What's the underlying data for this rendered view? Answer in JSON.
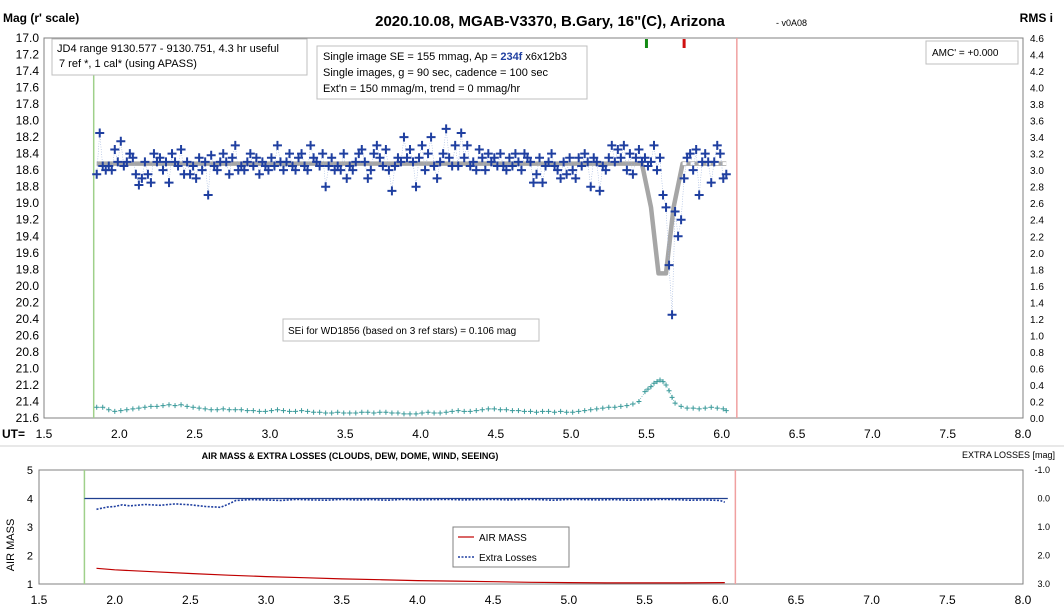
{
  "header": {
    "title": "2020.10.08, MGAB-V3370, B.Gary, 16\"(C), Arizona",
    "version": "- v0A08",
    "left_axis_label": "Mag (r' scale)",
    "right_axis_label": "RMS i",
    "ut_label": "UT="
  },
  "info_boxes": {
    "jd": [
      "JD4 range 9130.577 - 9130.751, 4.3 hr useful",
      "7 ref *, 1 cal* (using APASS)"
    ],
    "se_prefix": "Single image SE = 155 mmag, Ap = ",
    "se_ap": "234f",
    "se_suffix": " x6x12b3",
    "line2": "Single images, g = 90 sec, cadence = 100 sec",
    "line3": "Ext'n = 150 mmag/m, trend = 0 mmag/hr",
    "amc": "AMC' = +0.000",
    "sei": "SEi for WD1856 (based on 3 ref stars) = 0.106 mag"
  },
  "bottom_panel": {
    "title": "AIR MASS & EXTRA LOSSES (CLOUDS, DEW, DOME, WIND, SEEING)",
    "right_label": "EXTRA LOSSES [mag]",
    "left_label": "AIR MASS",
    "legend": [
      "AIR MASS",
      "Extra Losses"
    ]
  },
  "colors": {
    "data_marker": "#1f3fa0",
    "model": "#a6a6a6",
    "rms": "#3a9a9a",
    "airmass": "#c00000",
    "extra": "#1f3fa0",
    "start_line": "#9fd08a",
    "end_line": "#f0a0a0",
    "tick_green": "#138a13",
    "tick_red": "#d01010"
  },
  "chart_data": [
    {
      "type": "scatter",
      "panel": "top",
      "xlabel": "UT",
      "ylabel": "Mag (r' scale)",
      "xlim": [
        1.5,
        8.0
      ],
      "x_ticks": [
        "1.5",
        "2.0",
        "2.5",
        "3.0",
        "3.5",
        "4.0",
        "4.5",
        "5.0",
        "5.5",
        "6.0",
        "6.5",
        "7.0",
        "7.5",
        "8.0"
      ],
      "ylim": [
        17.0,
        21.6
      ],
      "y_inverted": true,
      "y_ticks": [
        "17.0",
        "17.2",
        "17.4",
        "17.6",
        "17.8",
        "18.0",
        "18.2",
        "18.4",
        "18.6",
        "18.8",
        "19.0",
        "19.2",
        "19.4",
        "19.6",
        "19.8",
        "20.0",
        "20.2",
        "20.4",
        "20.6",
        "20.8",
        "21.0",
        "21.2",
        "21.4",
        "21.6"
      ],
      "y2label": "RMS i",
      "y2lim": [
        0.0,
        4.6
      ],
      "y2_ticks": [
        "4.6",
        "4.4",
        "4.2",
        "4.0",
        "3.8",
        "3.6",
        "3.4",
        "3.2",
        "3.0",
        "2.8",
        "2.6",
        "2.4",
        "2.2",
        "2.0",
        "1.8",
        "1.6",
        "1.4",
        "1.2",
        "1.0",
        "0.8",
        "0.6",
        "0.4",
        "0.2",
        "0.0"
      ],
      "observation_start": 1.83,
      "observation_end": 6.1,
      "ingress_tick": 5.5,
      "egress_tick": 5.75,
      "model_baseline": 18.52,
      "model_depth": 19.85,
      "series": [
        {
          "kind": "magnitude",
          "x": [
            1.85,
            1.87,
            1.89,
            1.91,
            1.93,
            1.95,
            1.97,
            1.99,
            2.01,
            2.03,
            2.05,
            2.07,
            2.09,
            2.11,
            2.13,
            2.15,
            2.17,
            2.19,
            2.21,
            2.23,
            2.25,
            2.27,
            2.29,
            2.31,
            2.33,
            2.35,
            2.37,
            2.39,
            2.41,
            2.43,
            2.45,
            2.47,
            2.49,
            2.51,
            2.53,
            2.55,
            2.57,
            2.59,
            2.61,
            2.63,
            2.65,
            2.67,
            2.69,
            2.71,
            2.73,
            2.75,
            2.77,
            2.79,
            2.81,
            2.83,
            2.85,
            2.87,
            2.89,
            2.91,
            2.93,
            2.95,
            2.97,
            2.99,
            3.01,
            3.03,
            3.05,
            3.07,
            3.09,
            3.11,
            3.13,
            3.15,
            3.17,
            3.19,
            3.21,
            3.23,
            3.25,
            3.27,
            3.29,
            3.31,
            3.33,
            3.35,
            3.37,
            3.39,
            3.41,
            3.43,
            3.45,
            3.47,
            3.49,
            3.51,
            3.53,
            3.55,
            3.57,
            3.59,
            3.61,
            3.63,
            3.65,
            3.67,
            3.69,
            3.71,
            3.73,
            3.75,
            3.77,
            3.79,
            3.81,
            3.83,
            3.85,
            3.87,
            3.89,
            3.91,
            3.93,
            3.95,
            3.97,
            3.99,
            4.01,
            4.03,
            4.05,
            4.07,
            4.09,
            4.11,
            4.13,
            4.15,
            4.17,
            4.19,
            4.21,
            4.23,
            4.25,
            4.27,
            4.29,
            4.31,
            4.33,
            4.35,
            4.37,
            4.39,
            4.41,
            4.43,
            4.45,
            4.47,
            4.49,
            4.51,
            4.53,
            4.55,
            4.57,
            4.59,
            4.61,
            4.63,
            4.65,
            4.67,
            4.69,
            4.71,
            4.73,
            4.75,
            4.77,
            4.79,
            4.81,
            4.83,
            4.85,
            4.87,
            4.89,
            4.91,
            4.93,
            4.95,
            4.97,
            4.99,
            5.01,
            5.03,
            5.05,
            5.07,
            5.09,
            5.11,
            5.13,
            5.15,
            5.17,
            5.19,
            5.21,
            5.23,
            5.25,
            5.27,
            5.29,
            5.31,
            5.33,
            5.35,
            5.37,
            5.39,
            5.41,
            5.43,
            5.45,
            5.47,
            5.49,
            5.51,
            5.53,
            5.55,
            5.57,
            5.59,
            5.61,
            5.63,
            5.65,
            5.67,
            5.69,
            5.71,
            5.73,
            5.75,
            5.77,
            5.79,
            5.81,
            5.83,
            5.85,
            5.87,
            5.89,
            5.91,
            5.93,
            5.95,
            5.97,
            5.99,
            6.01,
            6.03
          ],
          "y": [
            18.65,
            18.15,
            18.55,
            18.6,
            18.55,
            18.6,
            18.35,
            18.5,
            18.25,
            18.55,
            18.5,
            18.4,
            18.45,
            18.65,
            18.78,
            18.7,
            18.5,
            18.65,
            18.75,
            18.4,
            18.5,
            18.45,
            18.6,
            18.5,
            18.75,
            18.4,
            18.5,
            18.55,
            18.35,
            18.65,
            18.5,
            18.65,
            18.55,
            18.7,
            18.45,
            18.6,
            18.5,
            18.9,
            18.42,
            18.55,
            18.6,
            18.5,
            18.4,
            18.5,
            18.65,
            18.45,
            18.3,
            18.6,
            18.55,
            18.6,
            18.5,
            18.4,
            18.55,
            18.45,
            18.65,
            18.5,
            18.55,
            18.6,
            18.45,
            18.55,
            18.3,
            18.5,
            18.6,
            18.5,
            18.4,
            18.55,
            18.6,
            18.45,
            18.4,
            18.55,
            18.6,
            18.3,
            18.45,
            18.5,
            18.55,
            18.4,
            18.8,
            18.55,
            18.45,
            18.6,
            18.55,
            18.6,
            18.4,
            18.7,
            18.55,
            18.6,
            18.5,
            18.4,
            18.35,
            18.5,
            18.7,
            18.6,
            18.4,
            18.3,
            18.45,
            18.55,
            18.35,
            18.6,
            18.85,
            18.55,
            18.45,
            18.5,
            18.2,
            18.45,
            18.35,
            18.5,
            18.8,
            18.45,
            18.3,
            18.6,
            18.4,
            18.2,
            18.55,
            18.7,
            18.5,
            18.4,
            18.1,
            18.45,
            18.55,
            18.3,
            18.55,
            18.15,
            18.45,
            18.3,
            18.55,
            18.5,
            18.6,
            18.35,
            18.45,
            18.6,
            18.4,
            18.5,
            18.45,
            18.55,
            18.4,
            18.55,
            18.6,
            18.45,
            18.55,
            18.4,
            18.5,
            18.6,
            18.4,
            18.45,
            18.5,
            18.75,
            18.65,
            18.45,
            18.75,
            18.55,
            18.5,
            18.4,
            18.55,
            18.6,
            18.7,
            18.5,
            18.65,
            18.45,
            18.6,
            18.7,
            18.45,
            18.55,
            18.4,
            18.5,
            18.8,
            18.45,
            18.5,
            18.85,
            18.55,
            18.6,
            18.45,
            18.3,
            18.5,
            18.35,
            18.45,
            18.3,
            18.6,
            18.4,
            18.65,
            18.45,
            18.35,
            18.5,
            18.45,
            18.55,
            18.5,
            18.3,
            18.6,
            18.45,
            18.9,
            19.05,
            19.75,
            20.35,
            19.1,
            19.4,
            19.2,
            18.7,
            18.45,
            18.4,
            18.6,
            18.35,
            18.9,
            18.5,
            18.4,
            18.5,
            18.75,
            18.5,
            18.3,
            18.4,
            18.7,
            18.65
          ]
        },
        {
          "kind": "rms",
          "x": [
            1.85,
            1.89,
            1.93,
            1.97,
            2.01,
            2.05,
            2.09,
            2.13,
            2.17,
            2.21,
            2.25,
            2.29,
            2.33,
            2.37,
            2.41,
            2.45,
            2.49,
            2.53,
            2.57,
            2.61,
            2.65,
            2.69,
            2.73,
            2.77,
            2.81,
            2.85,
            2.89,
            2.93,
            2.97,
            3.01,
            3.05,
            3.09,
            3.13,
            3.17,
            3.21,
            3.25,
            3.29,
            3.33,
            3.37,
            3.41,
            3.45,
            3.49,
            3.53,
            3.57,
            3.61,
            3.65,
            3.69,
            3.73,
            3.77,
            3.81,
            3.85,
            3.89,
            3.93,
            3.97,
            4.01,
            4.05,
            4.09,
            4.13,
            4.17,
            4.21,
            4.25,
            4.29,
            4.33,
            4.37,
            4.41,
            4.45,
            4.49,
            4.53,
            4.57,
            4.61,
            4.65,
            4.69,
            4.73,
            4.77,
            4.81,
            4.85,
            4.89,
            4.93,
            4.97,
            5.01,
            5.05,
            5.09,
            5.13,
            5.17,
            5.21,
            5.25,
            5.29,
            5.33,
            5.37,
            5.41,
            5.45,
            5.49,
            5.51,
            5.53,
            5.55,
            5.57,
            5.59,
            5.61,
            5.63,
            5.65,
            5.67,
            5.69,
            5.73,
            5.77,
            5.81,
            5.85,
            5.89,
            5.93,
            5.97,
            6.01,
            6.03
          ],
          "y": [
            0.13,
            0.13,
            0.1,
            0.08,
            0.09,
            0.1,
            0.11,
            0.12,
            0.13,
            0.14,
            0.14,
            0.15,
            0.16,
            0.15,
            0.16,
            0.14,
            0.13,
            0.12,
            0.11,
            0.1,
            0.1,
            0.11,
            0.1,
            0.1,
            0.1,
            0.09,
            0.09,
            0.08,
            0.08,
            0.09,
            0.1,
            0.09,
            0.08,
            0.08,
            0.09,
            0.08,
            0.07,
            0.07,
            0.06,
            0.06,
            0.07,
            0.06,
            0.06,
            0.06,
            0.07,
            0.07,
            0.06,
            0.07,
            0.07,
            0.06,
            0.06,
            0.05,
            0.05,
            0.05,
            0.06,
            0.07,
            0.06,
            0.06,
            0.07,
            0.08,
            0.09,
            0.08,
            0.08,
            0.09,
            0.1,
            0.11,
            0.11,
            0.1,
            0.1,
            0.09,
            0.09,
            0.08,
            0.08,
            0.07,
            0.08,
            0.08,
            0.07,
            0.08,
            0.07,
            0.07,
            0.08,
            0.09,
            0.1,
            0.11,
            0.12,
            0.13,
            0.13,
            0.14,
            0.15,
            0.17,
            0.2,
            0.32,
            0.35,
            0.38,
            0.42,
            0.44,
            0.46,
            0.44,
            0.4,
            0.33,
            0.25,
            0.18,
            0.14,
            0.12,
            0.12,
            0.11,
            0.12,
            0.13,
            0.12,
            0.11,
            0.09
          ]
        }
      ]
    },
    {
      "type": "line",
      "panel": "bottom",
      "title": "AIR MASS & EXTRA LOSSES (CLOUDS, DEW, DOME, WIND, SEEING)",
      "xlim": [
        1.5,
        8.0
      ],
      "x_ticks": [
        "1.5",
        "2.0",
        "2.5",
        "3.0",
        "3.5",
        "4.0",
        "4.5",
        "5.0",
        "5.5",
        "6.0",
        "6.5",
        "7.0",
        "7.5",
        "8.0"
      ],
      "ylabel": "AIR MASS",
      "ylim": [
        1,
        5
      ],
      "y_ticks": [
        "1",
        "2",
        "3",
        "4",
        "5"
      ],
      "y2label": "EXTRA LOSSES [mag]",
      "y2lim": [
        -1.0,
        3.0
      ],
      "y2_inverted": true,
      "y2_ticks": [
        "-1.0",
        "0.0",
        "1.0",
        "2.0",
        "3.0"
      ],
      "reference_level": 4.0,
      "observation_start": 1.8,
      "observation_end": 6.1,
      "legend": [
        "AIR MASS",
        "Extra Losses"
      ],
      "series": [
        {
          "name": "AIR MASS",
          "x": [
            1.88,
            2.0,
            2.25,
            2.5,
            2.75,
            3.0,
            3.25,
            3.5,
            3.75,
            4.0,
            4.25,
            4.5,
            4.75,
            5.0,
            5.25,
            5.5,
            5.75,
            6.03
          ],
          "y": [
            1.55,
            1.5,
            1.43,
            1.37,
            1.31,
            1.26,
            1.22,
            1.18,
            1.15,
            1.12,
            1.1,
            1.08,
            1.06,
            1.05,
            1.04,
            1.04,
            1.04,
            1.05
          ]
        },
        {
          "name": "Extra Losses",
          "x": [
            1.88,
            1.95,
            2.0,
            2.05,
            2.1,
            2.2,
            2.3,
            2.4,
            2.5,
            2.6,
            2.7,
            2.75,
            2.8,
            2.9,
            3.0,
            3.1,
            3.2,
            3.3,
            3.4,
            3.5,
            3.6,
            3.7,
            3.8,
            3.9,
            4.0,
            4.1,
            4.2,
            4.3,
            4.4,
            4.5,
            4.6,
            4.7,
            4.8,
            4.9,
            5.0,
            5.1,
            5.2,
            5.3,
            5.4,
            5.5,
            5.6,
            5.7,
            5.8,
            5.9,
            6.0,
            6.03
          ],
          "y": [
            0.38,
            0.3,
            0.28,
            0.22,
            0.26,
            0.21,
            0.24,
            0.19,
            0.22,
            0.28,
            0.31,
            0.2,
            0.07,
            0.04,
            0.05,
            0.07,
            0.03,
            0.05,
            0.06,
            0.03,
            0.05,
            0.04,
            0.06,
            0.03,
            0.05,
            0.04,
            0.03,
            0.05,
            0.04,
            0.03,
            0.05,
            0.03,
            0.04,
            0.06,
            0.03,
            0.04,
            0.05,
            0.04,
            0.06,
            0.05,
            0.03,
            0.04,
            0.06,
            0.05,
            0.07,
            0.13
          ]
        }
      ]
    }
  ]
}
